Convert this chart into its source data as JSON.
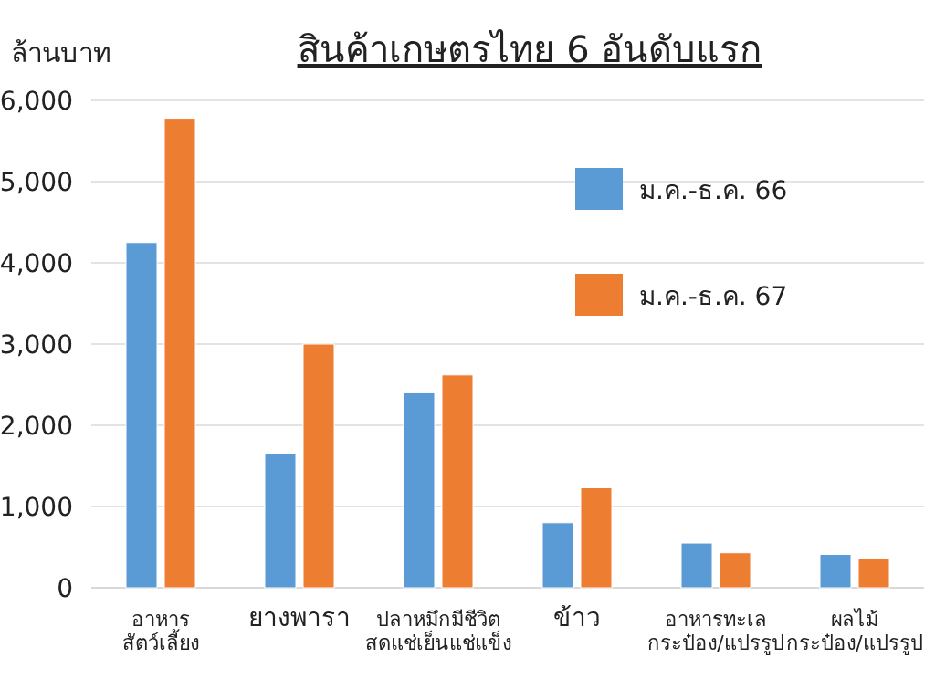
{
  "chart_data": {
    "type": "bar",
    "title": "สินค้าเกษตรไทย 6 อันดับแรก",
    "ylabel": "ล้านบาท",
    "categories": [
      "อาหาร\nสัตว์เลี้ยง",
      "ยางพารา",
      "ปลาหมึกมีชีวิต\nสดแช่เย็นแช่แข็ง",
      "ข้าว",
      "อาหารทะเล\nกระป๋อง/แปรรูป",
      "ผลไม้\nกระป๋อง/แปรรูป"
    ],
    "series": [
      {
        "name": "ม.ค.-ธ.ค. 66",
        "color": "#5b9bd5",
        "values": [
          4250,
          1650,
          2400,
          800,
          550,
          410
        ]
      },
      {
        "name": "ม.ค.-ธ.ค. 67",
        "color": "#ed7d31",
        "values": [
          5780,
          3000,
          2620,
          1230,
          430,
          360
        ]
      }
    ],
    "ylim": [
      0,
      6000
    ],
    "yticks": [
      {
        "value": 0,
        "label": "0"
      },
      {
        "value": 1000,
        "label": "1,000"
      },
      {
        "value": 2000,
        "label": "2,000"
      },
      {
        "value": 3000,
        "label": "3,000"
      },
      {
        "value": 4000,
        "label": "4,000"
      },
      {
        "value": 5000,
        "label": "5,000"
      },
      {
        "value": 6000,
        "label": "6,000"
      }
    ],
    "grid": "y",
    "legend": "top right"
  }
}
